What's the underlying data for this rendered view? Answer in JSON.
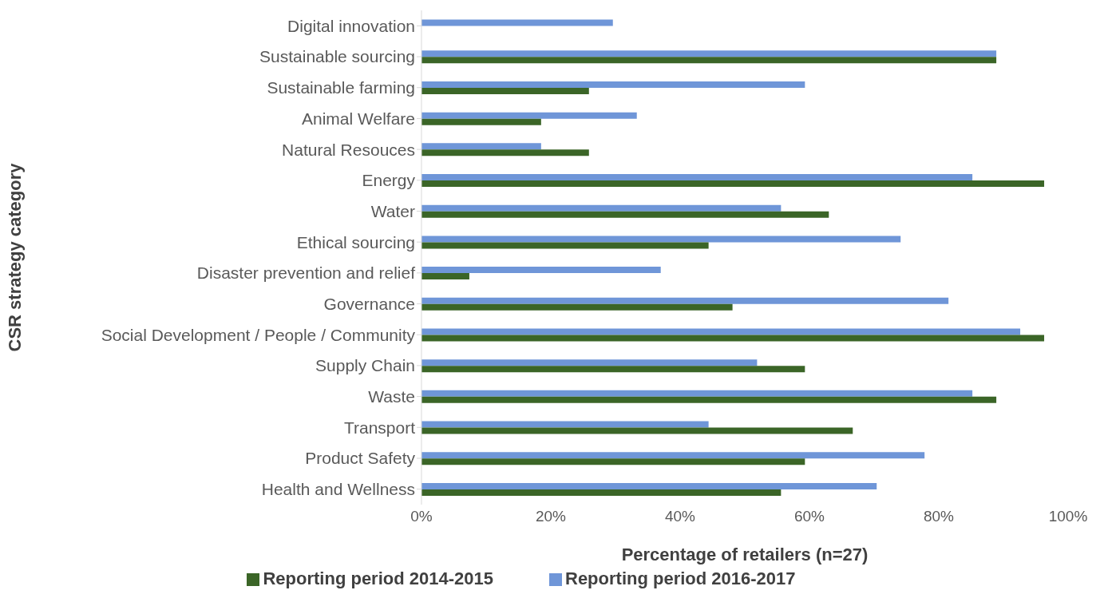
{
  "chart_data": {
    "type": "bar",
    "orientation": "horizontal",
    "xlabel": "Percentage of retailers (n=27)",
    "ylabel": "CSR strategy category",
    "categories": [
      "Digital innovation",
      "Sustainable sourcing",
      "Sustainable farming",
      "Animal Welfare",
      "Natural Resouces",
      "Energy",
      "Water",
      "Ethical sourcing",
      "Disaster prevention and relief",
      "Governance",
      "Social Development / People / Community",
      "Supply Chain",
      "Waste",
      "Transport",
      "Product Safety",
      "Health and Wellness"
    ],
    "series": [
      {
        "name": "Reporting period 2016-2017",
        "color": "#6f96d8",
        "values": [
          29.6,
          88.9,
          59.3,
          33.3,
          18.5,
          85.2,
          55.6,
          74.1,
          37.0,
          81.5,
          92.6,
          51.9,
          85.2,
          44.4,
          77.8,
          70.4
        ]
      },
      {
        "name": "Reporting period 2014-2015",
        "color": "#3b6527",
        "values": [
          null,
          88.9,
          25.9,
          18.5,
          25.9,
          96.3,
          63.0,
          44.4,
          7.4,
          48.1,
          96.3,
          59.3,
          88.9,
          66.7,
          59.3,
          55.6
        ]
      }
    ],
    "xlim": [
      0,
      100
    ],
    "xticks": [
      {
        "value": 0,
        "label": "0%"
      },
      {
        "value": 20,
        "label": "20%"
      },
      {
        "value": 40,
        "label": "40%"
      },
      {
        "value": 60,
        "label": "60%"
      },
      {
        "value": 80,
        "label": "80%"
      },
      {
        "value": 100,
        "label": "100%"
      }
    ],
    "grid": false,
    "legend": "bottom"
  }
}
